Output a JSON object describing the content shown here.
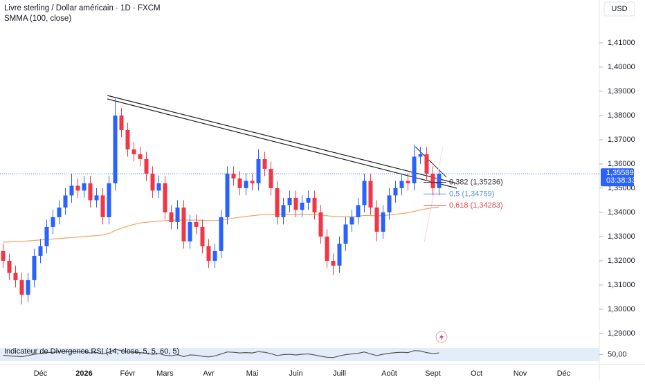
{
  "header": {
    "symbol_title": "Livre sterling / Dollar américain · 1D · FXCM",
    "currency_button": "USD"
  },
  "chart_data": {
    "type": "candlestick",
    "indicator_label": "SMMA (100, close)",
    "categories": [
      null,
      null,
      null,
      null,
      null,
      null,
      "Déc",
      null,
      null,
      null,
      null,
      null,
      null,
      "2026",
      null,
      null,
      null,
      null,
      null,
      null,
      "Févr",
      null,
      null,
      null,
      null,
      null,
      "Mars",
      null,
      null,
      null,
      null,
      null,
      null,
      "Avr",
      null,
      null,
      null,
      null,
      null,
      null,
      "Mai",
      null,
      null,
      null,
      null,
      null,
      null,
      "Juin",
      null,
      null,
      null,
      null,
      null,
      null,
      "Juill",
      null,
      null,
      null,
      null,
      null,
      null,
      null,
      "Août",
      null,
      null,
      null,
      null,
      null,
      null,
      "Sept",
      null,
      null,
      null,
      null,
      null,
      null,
      "Oct",
      null,
      null,
      null,
      null,
      null,
      null,
      "Nov",
      null,
      null,
      null,
      null,
      null,
      null,
      "Déc",
      null,
      null,
      null,
      null
    ],
    "up_color": "#2962ff",
    "down_color": "#f23645",
    "ohlc": [
      [
        1.324,
        1.327,
        1.317,
        1.32
      ],
      [
        1.32,
        1.323,
        1.312,
        1.315
      ],
      [
        1.315,
        1.318,
        1.309,
        1.312
      ],
      [
        1.312,
        1.315,
        1.302,
        1.306
      ],
      [
        1.306,
        1.315,
        1.303,
        1.312
      ],
      [
        1.312,
        1.325,
        1.309,
        1.322
      ],
      [
        1.322,
        1.329,
        1.319,
        1.326
      ],
      [
        1.326,
        1.337,
        1.323,
        1.334
      ],
      [
        1.334,
        1.341,
        1.331,
        1.338
      ],
      [
        1.338,
        1.345,
        1.335,
        1.342
      ],
      [
        1.342,
        1.35,
        1.339,
        1.347
      ],
      [
        1.347,
        1.356,
        1.344,
        1.351
      ],
      [
        1.351,
        1.354,
        1.346,
        1.349
      ],
      [
        1.349,
        1.355,
        1.346,
        1.352
      ],
      [
        1.352,
        1.355,
        1.342,
        1.345
      ],
      [
        1.345,
        1.35,
        1.342,
        1.347
      ],
      [
        1.347,
        1.35,
        1.335,
        1.338
      ],
      [
        1.338,
        1.355,
        1.335,
        1.352
      ],
      [
        1.352,
        1.387,
        1.349,
        1.38
      ],
      [
        1.38,
        1.383,
        1.371,
        1.374
      ],
      [
        1.374,
        1.377,
        1.363,
        1.366
      ],
      [
        1.366,
        1.369,
        1.361,
        1.364
      ],
      [
        1.364,
        1.367,
        1.359,
        1.362
      ],
      [
        1.362,
        1.365,
        1.353,
        1.356
      ],
      [
        1.356,
        1.359,
        1.346,
        1.349
      ],
      [
        1.349,
        1.355,
        1.346,
        1.352
      ],
      [
        1.352,
        1.355,
        1.337,
        1.34
      ],
      [
        1.34,
        1.343,
        1.333,
        1.336
      ],
      [
        1.336,
        1.345,
        1.333,
        1.342
      ],
      [
        1.342,
        1.345,
        1.325,
        1.328
      ],
      [
        1.328,
        1.339,
        1.325,
        1.336
      ],
      [
        1.336,
        1.339,
        1.331,
        1.334
      ],
      [
        1.334,
        1.337,
        1.323,
        1.326
      ],
      [
        1.326,
        1.329,
        1.317,
        1.32
      ],
      [
        1.32,
        1.327,
        1.317,
        1.324
      ],
      [
        1.324,
        1.341,
        1.321,
        1.338
      ],
      [
        1.338,
        1.359,
        1.335,
        1.356
      ],
      [
        1.356,
        1.359,
        1.351,
        1.354
      ],
      [
        1.354,
        1.357,
        1.347,
        1.35
      ],
      [
        1.35,
        1.356,
        1.347,
        1.353
      ],
      [
        1.353,
        1.356,
        1.349,
        1.352
      ],
      [
        1.352,
        1.366,
        1.349,
        1.362
      ],
      [
        1.362,
        1.365,
        1.355,
        1.358
      ],
      [
        1.358,
        1.361,
        1.347,
        1.35
      ],
      [
        1.35,
        1.353,
        1.335,
        1.338
      ],
      [
        1.338,
        1.346,
        1.335,
        1.343
      ],
      [
        1.343,
        1.349,
        1.34,
        1.346
      ],
      [
        1.346,
        1.349,
        1.338,
        1.341
      ],
      [
        1.341,
        1.347,
        1.338,
        1.344
      ],
      [
        1.344,
        1.349,
        1.341,
        1.346
      ],
      [
        1.346,
        1.349,
        1.337,
        1.34
      ],
      [
        1.34,
        1.343,
        1.327,
        1.33
      ],
      [
        1.33,
        1.333,
        1.317,
        1.32
      ],
      [
        1.32,
        1.323,
        1.314,
        1.318
      ],
      [
        1.318,
        1.33,
        1.315,
        1.327
      ],
      [
        1.327,
        1.338,
        1.324,
        1.335
      ],
      [
        1.335,
        1.341,
        1.332,
        1.338
      ],
      [
        1.338,
        1.346,
        1.335,
        1.343
      ],
      [
        1.343,
        1.356,
        1.34,
        1.353
      ],
      [
        1.353,
        1.356,
        1.339,
        1.342
      ],
      [
        1.342,
        1.345,
        1.328,
        1.332
      ],
      [
        1.332,
        1.343,
        1.329,
        1.34
      ],
      [
        1.34,
        1.35,
        1.337,
        1.347
      ],
      [
        1.347,
        1.353,
        1.344,
        1.35
      ],
      [
        1.35,
        1.356,
        1.347,
        1.353
      ],
      [
        1.353,
        1.356,
        1.349,
        1.352
      ],
      [
        1.352,
        1.368,
        1.349,
        1.363
      ],
      [
        1.363,
        1.367,
        1.36,
        1.364
      ],
      [
        1.364,
        1.367,
        1.353,
        1.356
      ],
      [
        1.356,
        1.359,
        1.347,
        1.35
      ],
      [
        1.35,
        1.357,
        1.347,
        1.3559
      ],
      null,
      null,
      null,
      null,
      null,
      null,
      null,
      null,
      null,
      null,
      null,
      null,
      null,
      null,
      null,
      null,
      null,
      null,
      null,
      null,
      null,
      null,
      null,
      null
    ],
    "smma": {
      "color": "#f0a35e",
      "values": [
        1.3277,
        1.3278,
        1.3279,
        1.328,
        1.3282,
        1.3284,
        1.3286,
        1.3288,
        1.329,
        1.3292,
        1.3294,
        1.3296,
        1.3298,
        1.33,
        1.3302,
        1.3304,
        1.3306,
        1.3313,
        1.3325,
        1.3335,
        1.3343,
        1.335,
        1.3356,
        1.3359,
        1.3362,
        1.3364,
        1.3366,
        1.3367,
        1.3368,
        1.3368,
        1.3368,
        1.3368,
        1.3367,
        1.3366,
        1.3366,
        1.3368,
        1.3372,
        1.3376,
        1.338,
        1.3383,
        1.3386,
        1.3389,
        1.3391,
        1.3392,
        1.3392,
        1.3392,
        1.3392,
        1.3392,
        1.3392,
        1.3392,
        1.3391,
        1.3389,
        1.3386,
        1.3383,
        1.3382,
        1.3382,
        1.3383,
        1.3384,
        1.3387,
        1.3387,
        1.3386,
        1.3387,
        1.3389,
        1.3392,
        1.3395,
        1.3398,
        1.3404,
        1.341,
        1.3415,
        1.3419,
        1.3422,
        null,
        null,
        null,
        null,
        null,
        null,
        null,
        null,
        null,
        null,
        null,
        null,
        null,
        null,
        null,
        null,
        null,
        null,
        null,
        null,
        null,
        null,
        null,
        null
      ]
    },
    "ylim": [
      1.2854,
      1.4277
    ],
    "yticks": [
      {
        "value": 1.29,
        "label": "1,29000"
      },
      {
        "value": 1.3,
        "label": "1,30000"
      },
      {
        "value": 1.31,
        "label": "1,31000"
      },
      {
        "value": 1.32,
        "label": "1,32000"
      },
      {
        "value": 1.33,
        "label": "1,33000"
      },
      {
        "value": 1.34,
        "label": "1,34000"
      },
      {
        "value": 1.35,
        "label": "1,35000"
      },
      {
        "value": 1.36,
        "label": "1,36000"
      },
      {
        "value": 1.37,
        "label": "1,37000"
      },
      {
        "value": 1.38,
        "label": "1,38000"
      },
      {
        "value": 1.39,
        "label": "1,39000"
      },
      {
        "value": 1.4,
        "label": "1,40000"
      },
      {
        "value": 1.41,
        "label": "1,41000"
      }
    ],
    "price_label": {
      "value": 1.35589,
      "label": "1,35589"
    },
    "countdown": "03:38:33",
    "fib_levels": [
      {
        "value": 1.35236,
        "label": "0,382 (1,35236)",
        "color": "#333333"
      },
      {
        "value": 1.34759,
        "label": "0,5 (1,34759)",
        "color": "#5b8def"
      },
      {
        "value": 1.34283,
        "label": "0,618 (1,34283)",
        "color": "#e0474c"
      }
    ],
    "rsi": {
      "title": "Indicateur de Divergence RSI (14, close, 5, 5, 60, 5)",
      "color": "#555555",
      "ylim": [
        30,
        70
      ],
      "yticks": [
        {
          "value": 50,
          "label": "50,00"
        }
      ],
      "values": [
        48,
        46,
        45,
        44,
        47,
        51,
        53,
        56,
        57,
        58,
        59,
        60,
        58,
        59,
        55,
        56,
        52,
        57,
        66,
        62,
        58,
        57,
        56,
        54,
        51,
        53,
        48,
        46,
        50,
        44,
        49,
        48,
        45,
        43,
        46,
        52,
        58,
        57,
        55,
        56,
        55,
        59,
        57,
        53,
        47,
        50,
        51,
        49,
        51,
        52,
        49,
        45,
        42,
        41,
        46,
        50,
        52,
        54,
        58,
        52,
        47,
        51,
        54,
        56,
        57,
        56,
        62,
        61,
        56,
        53,
        55,
        null,
        null,
        null,
        null,
        null,
        null,
        null,
        null,
        null,
        null,
        null,
        null,
        null,
        null,
        null,
        null,
        null,
        null,
        null,
        null,
        null,
        null,
        null,
        null
      ]
    }
  }
}
